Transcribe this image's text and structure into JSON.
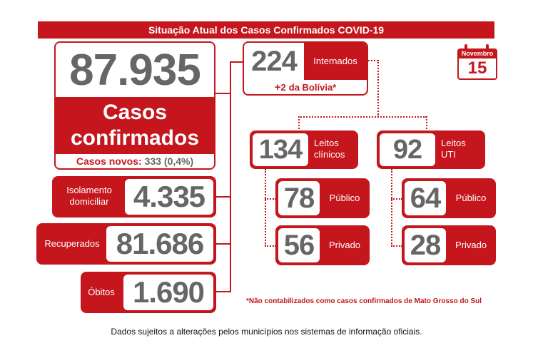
{
  "title": "Situação Atual dos Casos Confirmados COVID-19",
  "calendar": {
    "month": "Novembro",
    "day": "15"
  },
  "confirmed": {
    "total": "87.935",
    "label_line1": "Casos",
    "label_line2": "confirmados",
    "new_cases_label": "Casos novos:",
    "new_cases_value": "333 (0,4%)"
  },
  "isolation": {
    "label_line1": "Isolamento",
    "label_line2": "domiciliar",
    "value": "4.335"
  },
  "recovered": {
    "label": "Recuperados",
    "value": "81.686"
  },
  "deaths": {
    "label": "Óbitos",
    "value": "1.690"
  },
  "hospitalized": {
    "value": "224",
    "label": "Internados",
    "bolivia_prefix": "+",
    "bolivia_number": "2",
    "bolivia_text": "da Bolívia*"
  },
  "clinical": {
    "value": "134",
    "label_line1": "Leitos",
    "label_line2": "clínicos",
    "public_value": "78",
    "public_label": "Público",
    "private_value": "56",
    "private_label": "Privado"
  },
  "icu": {
    "value": "92",
    "label_line1": "Leitos",
    "label_line2": "UTI",
    "public_value": "64",
    "public_label": "Público",
    "private_value": "28",
    "private_label": "Privado"
  },
  "note": "*Não contabilizados como casos confirmados de Mato Grosso do Sul",
  "footer": "Dados sujeitos a alterações pelos municípios nos sistemas de informação oficiais.",
  "colors": {
    "accent": "#c4161c",
    "number": "#666666"
  }
}
